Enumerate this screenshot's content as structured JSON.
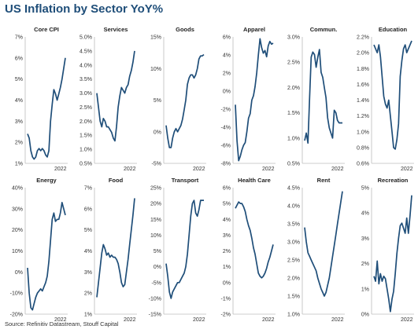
{
  "title": "US Inflation by Sector YoY%",
  "source": "Source: Refinitiv Datastream, Stouff Capital",
  "line_color": "#1f4e79",
  "chart_data": [
    {
      "type": "line",
      "title": "Core CPI",
      "ylim": [
        1,
        7
      ],
      "yticks": [
        "1%",
        "2%",
        "3%",
        "4%",
        "5%",
        "6%",
        "7%"
      ],
      "xtick": "2022",
      "values": [
        2.4,
        2.2,
        1.6,
        1.3,
        1.2,
        1.3,
        1.6,
        1.7,
        1.6,
        1.7,
        1.6,
        1.4,
        1.3,
        1.6,
        3.0,
        3.8,
        4.5,
        4.3,
        4.0,
        4.3,
        4.6,
        5.0,
        5.5,
        6.0
      ]
    },
    {
      "type": "line",
      "title": "Services",
      "ylim": [
        0.5,
        5
      ],
      "yticks": [
        "0.5%",
        "1.0%",
        "1.5%",
        "2.0%",
        "2.5%",
        "3.0%",
        "3.5%",
        "4.0%",
        "4.5%",
        "5.0%"
      ],
      "xtick": "2022",
      "values": [
        3.0,
        2.5,
        2.0,
        1.8,
        2.1,
        2.0,
        1.8,
        1.8,
        1.7,
        1.6,
        1.4,
        1.3,
        1.8,
        2.5,
        2.9,
        3.2,
        3.1,
        3.0,
        3.2,
        3.3,
        3.6,
        3.8,
        4.1,
        4.5
      ]
    },
    {
      "type": "line",
      "title": "Goods",
      "ylim": [
        -5,
        15
      ],
      "yticks": [
        "-5%",
        "0%",
        "5%",
        "10%",
        "15%"
      ],
      "xtick": "2022",
      "values": [
        1,
        -1,
        -2.5,
        -2.5,
        -1,
        0,
        0.5,
        0,
        0.5,
        1,
        2,
        3.5,
        5,
        7.5,
        8.5,
        9,
        9,
        8.5,
        9,
        10,
        11.5,
        12,
        12,
        12.2
      ]
    },
    {
      "type": "line",
      "title": "Apparel",
      "ylim": [
        -8,
        6
      ],
      "yticks": [
        "-8%",
        "-6%",
        "-4%",
        "-2%",
        "0%",
        "2%",
        "4%",
        "6%"
      ],
      "xtick": "2022",
      "values": [
        -1.5,
        -5.5,
        -7.7,
        -7.2,
        -6.5,
        -6.0,
        -5.7,
        -4.5,
        -3.0,
        -2.5,
        -1.0,
        -0.5,
        0.5,
        2,
        4,
        5.8,
        4.8,
        4.2,
        4.5,
        3.8,
        5,
        5.5,
        5.2,
        5.3
      ]
    },
    {
      "type": "line",
      "title": "Commun.",
      "ylim": [
        0.5,
        3
      ],
      "yticks": [
        "0.5%",
        "1.0%",
        "1.5%",
        "2.0%",
        "2.5%",
        "3.0%"
      ],
      "xtick": "2022",
      "values": [
        0.95,
        1.1,
        0.9,
        1.8,
        2.6,
        2.7,
        2.65,
        2.4,
        2.6,
        2.75,
        2.3,
        2.2,
        2.0,
        1.8,
        1.4,
        1.2,
        1.1,
        1.0,
        1.55,
        1.5,
        1.35,
        1.3,
        1.3,
        1.3
      ]
    },
    {
      "type": "line",
      "title": "Education",
      "ylim": [
        0.6,
        2.2
      ],
      "yticks": [
        "0.6%",
        "0.8%",
        "1.0%",
        "1.2%",
        "1.4%",
        "1.6%",
        "1.8%",
        "2.0%",
        "2.2%"
      ],
      "xtick": "2022",
      "values": [
        2.1,
        2.05,
        2.0,
        2.1,
        1.95,
        1.7,
        1.45,
        1.35,
        1.3,
        1.4,
        1.2,
        1.0,
        0.8,
        0.78,
        0.9,
        1.1,
        1.7,
        1.9,
        2.05,
        2.1,
        2.0,
        2.05,
        2.1,
        2.15
      ]
    },
    {
      "type": "line",
      "title": "Energy",
      "ylim": [
        -20,
        40
      ],
      "yticks": [
        "-20%",
        "-10%",
        "0%",
        "10%",
        "20%",
        "30%",
        "40%"
      ],
      "xtick": "2022",
      "values": [
        2,
        -10,
        -17,
        -18,
        -15,
        -12,
        -10,
        -9,
        -8,
        -9,
        -7,
        -5,
        -2,
        5,
        15,
        25,
        28,
        24,
        25,
        25,
        28,
        33,
        30,
        27
      ]
    },
    {
      "type": "line",
      "title": "Food",
      "ylim": [
        1,
        7
      ],
      "yticks": [
        "1%",
        "2%",
        "3%",
        "4%",
        "5%",
        "6%",
        "7%"
      ],
      "xtick": "2022",
      "values": [
        1.8,
        2.5,
        3.2,
        3.9,
        4.3,
        4.1,
        3.8,
        3.9,
        3.7,
        3.8,
        3.7,
        3.7,
        3.6,
        3.4,
        3.0,
        2.5,
        2.3,
        2.4,
        3.0,
        3.6,
        4.3,
        5.0,
        5.7,
        6.5
      ]
    },
    {
      "type": "line",
      "title": "Transport",
      "ylim": [
        -15,
        25
      ],
      "yticks": [
        "-15%",
        "-10%",
        "-5%",
        "0%",
        "5%",
        "10%",
        "15%",
        "20%",
        "25%"
      ],
      "xtick": "2022",
      "values": [
        1,
        -3,
        -8,
        -10,
        -8,
        -7,
        -6,
        -5,
        -5,
        -4,
        -3,
        -2,
        0,
        4,
        10,
        16,
        20,
        21,
        17,
        16,
        18,
        21,
        21,
        21
      ]
    },
    {
      "type": "line",
      "title": "Health Care",
      "ylim": [
        -2,
        6
      ],
      "yticks": [
        "-2%",
        "-1%",
        "0%",
        "1%",
        "2%",
        "3%",
        "4%",
        "5%",
        "6%"
      ],
      "xtick": "2022",
      "values": [
        4.7,
        4.9,
        5.1,
        5.0,
        5.0,
        4.8,
        4.5,
        4.0,
        3.6,
        3.3,
        2.8,
        2.2,
        1.8,
        1.2,
        0.6,
        0.4,
        0.3,
        0.4,
        0.6,
        0.9,
        1.3,
        1.6,
        2.0,
        2.4
      ]
    },
    {
      "type": "line",
      "title": "Rent",
      "ylim": [
        1,
        4.5
      ],
      "yticks": [
        "1.0%",
        "1.5%",
        "2.0%",
        "2.5%",
        "3.0%",
        "3.5%",
        "4.0%",
        "4.5%"
      ],
      "xtick": "2022",
      "values": [
        3.4,
        3.0,
        2.7,
        2.6,
        2.5,
        2.4,
        2.3,
        2.2,
        2.0,
        1.85,
        1.7,
        1.6,
        1.5,
        1.6,
        1.8,
        2.0,
        2.3,
        2.6,
        2.9,
        3.2,
        3.5,
        3.8,
        4.1,
        4.4
      ]
    },
    {
      "type": "line",
      "title": "Recreation",
      "ylim": [
        0,
        5
      ],
      "yticks": [
        "0%",
        "1%",
        "2%",
        "3%",
        "4%",
        "5%"
      ],
      "xtick": "2022",
      "values": [
        1.5,
        1.3,
        2.1,
        1.2,
        1.6,
        1.3,
        1.5,
        1.4,
        1.0,
        0.6,
        0.1,
        0.6,
        0.9,
        1.6,
        2.4,
        3.0,
        3.5,
        3.6,
        3.4,
        3.2,
        3.8,
        3.2,
        3.9,
        4.7
      ]
    }
  ]
}
